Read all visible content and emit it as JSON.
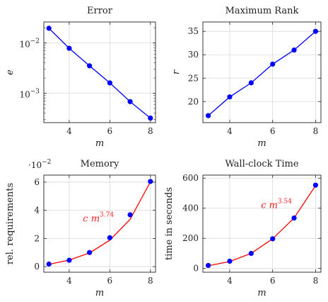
{
  "chart_data": [
    {
      "type": "line",
      "title": "Error",
      "xlabel": "m",
      "ylabel": "e",
      "yscale": "log",
      "x": [
        3,
        4,
        5,
        6,
        7,
        8
      ],
      "series": [
        {
          "color": "#0000ff",
          "values": [
            0.0195,
            0.0078,
            0.0035,
            0.0016,
            0.00068,
            0.00032
          ]
        }
      ],
      "xlim": [
        2.75,
        8.25
      ],
      "ylim": [
        0.00026,
        0.026
      ],
      "xticks": [
        "4",
        "6",
        "8"
      ],
      "yticks": [
        {
          "value": 0.01,
          "base": "10",
          "exp": "−2"
        },
        {
          "value": 0.001,
          "base": "10",
          "exp": "−3"
        }
      ],
      "grid": true
    },
    {
      "type": "line",
      "title": "Maximum Rank",
      "xlabel": "m",
      "ylabel": "r",
      "x": [
        3,
        4,
        5,
        6,
        7,
        8
      ],
      "series": [
        {
          "color": "#0000ff",
          "values": [
            17,
            21,
            24,
            28,
            31,
            35
          ]
        }
      ],
      "xlim": [
        2.75,
        8.25
      ],
      "ylim": [
        15.5,
        37
      ],
      "xticks": [
        "4",
        "6",
        "8"
      ],
      "yticks": [
        "20",
        "25",
        "30",
        "35"
      ],
      "grid": true
    },
    {
      "type": "line",
      "title": "Memory",
      "xlabel": "m",
      "ylabel": "rel. requirements",
      "scale_label": {
        "base": "·10",
        "exp": "−2"
      },
      "x": [
        3,
        4,
        5,
        6,
        7,
        8
      ],
      "series": [
        {
          "color": "#ff0000",
          "marker": false,
          "values": [
            0.16,
            0.46,
            0.97,
            1.88,
            3.36,
            6.02
          ]
        },
        {
          "color": "#0000ff",
          "line": false,
          "values": [
            0.18,
            0.45,
            1.0,
            2.05,
            3.68,
            6.05
          ]
        }
      ],
      "annotation": {
        "base": "c m",
        "exp": "3.74",
        "x": 6.2,
        "y": 3.2
      },
      "xlim": [
        2.75,
        8.25
      ],
      "ylim": [
        -0.4,
        6.5
      ],
      "xticks": [
        "4",
        "6",
        "8"
      ],
      "yticks": [
        "0",
        "2",
        "4",
        "6"
      ],
      "grid": true
    },
    {
      "type": "line",
      "title": "Wall-clock Time",
      "xlabel": "m",
      "ylabel": "time in seconds",
      "x": [
        3,
        4,
        5,
        6,
        7,
        8
      ],
      "series": [
        {
          "color": "#ff0000",
          "marker": false,
          "values": [
            18,
            46,
            100,
            197,
            335,
            550
          ]
        },
        {
          "color": "#0000ff",
          "line": false,
          "values": [
            20,
            48,
            100,
            197,
            335,
            553
          ]
        }
      ],
      "annotation": {
        "base": "c m",
        "exp": "3.54",
        "x": 6.9,
        "y": 400
      },
      "xlim": [
        2.75,
        8.25
      ],
      "ylim": [
        -25,
        620
      ],
      "xticks": [
        "4",
        "6",
        "8"
      ],
      "yticks": [
        "0",
        "200",
        "400",
        "600"
      ],
      "grid": true
    }
  ]
}
